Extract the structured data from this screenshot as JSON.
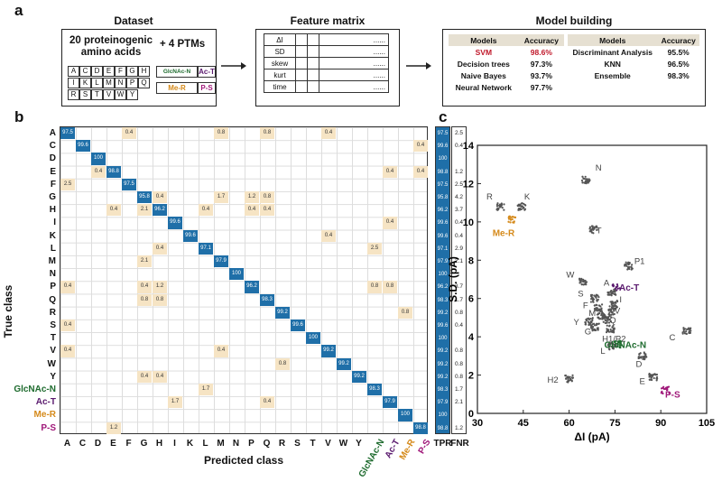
{
  "panel_a": {
    "label": "a",
    "dataset": {
      "title": "Dataset",
      "text_line1": "20 proteinogenic",
      "text_line2": "amino acids",
      "plus": "+ 4 PTMs",
      "amino_acids": [
        "A",
        "C",
        "D",
        "E",
        "F",
        "G",
        "H",
        "I",
        "K",
        "L",
        "M",
        "N",
        "P",
        "Q",
        "R",
        "S",
        "T",
        "V",
        "W",
        "Y"
      ],
      "ptms": [
        {
          "label": "GlcNAc-N",
          "color": "#1e6b2e"
        },
        {
          "label": "Ac-T",
          "color": "#5a1a6e"
        },
        {
          "label": "Me-R",
          "color": "#d58a1b"
        },
        {
          "label": "P-S",
          "color": "#a0197a"
        }
      ]
    },
    "feature_matrix": {
      "title": "Feature matrix",
      "rows": [
        "ΔI",
        "SD",
        "skew",
        "kurt",
        "time"
      ],
      "dots": "......"
    },
    "model_building": {
      "title": "Model building",
      "header": {
        "models": "Models",
        "accuracy": "Accuracy"
      },
      "left": [
        {
          "model": "SVM",
          "acc": "98.6%",
          "highlight": true
        },
        {
          "model": "Decision trees",
          "acc": "97.3%"
        },
        {
          "model": "Naive Bayes",
          "acc": "93.7%"
        },
        {
          "model": "Neural Network",
          "acc": "97.7%"
        }
      ],
      "right": [
        {
          "model": "Discriminant Analysis",
          "acc": "95.5%"
        },
        {
          "model": "KNN",
          "acc": "96.5%"
        },
        {
          "model": "Ensemble",
          "acc": "98.3%"
        }
      ]
    }
  },
  "panel_b": {
    "label": "b",
    "chart_data": {
      "type": "heatmap",
      "title": "Confusion matrix",
      "ylabel": "True class",
      "xlabel": "Predicted class",
      "classes": [
        "A",
        "C",
        "D",
        "E",
        "F",
        "G",
        "H",
        "I",
        "K",
        "L",
        "M",
        "N",
        "P",
        "Q",
        "R",
        "S",
        "T",
        "V",
        "W",
        "Y",
        "GlcNAc-N",
        "Ac-T",
        "Me-R",
        "P-S"
      ],
      "class_colors": {
        "GlcNAc-N": "#1e6b2e",
        "Ac-T": "#5a1a6e",
        "Me-R": "#d58a1b",
        "P-S": "#a0197a"
      },
      "diagonal": [
        97.5,
        99.6,
        100,
        98.8,
        97.5,
        95.8,
        96.2,
        99.6,
        99.6,
        97.1,
        97.9,
        100,
        96.2,
        98.3,
        99.2,
        99.6,
        100,
        99.2,
        99.2,
        99.2,
        98.3,
        97.9,
        100,
        98.8
      ],
      "off_diagonal": [
        {
          "r": "A",
          "c": "F",
          "v": 0.4
        },
        {
          "r": "A",
          "c": "M",
          "v": 0.8
        },
        {
          "r": "A",
          "c": "Q",
          "v": 0.8
        },
        {
          "r": "A",
          "c": "V",
          "v": 0.4
        },
        {
          "r": "C",
          "c": "P-S",
          "v": 0.4
        },
        {
          "r": "E",
          "c": "D",
          "v": 0.4
        },
        {
          "r": "E",
          "c": "Ac-T",
          "v": 0.4
        },
        {
          "r": "E",
          "c": "P-S",
          "v": 0.4
        },
        {
          "r": "F",
          "c": "A",
          "v": 2.5
        },
        {
          "r": "G",
          "c": "H",
          "v": 0.4
        },
        {
          "r": "G",
          "c": "M",
          "v": 1.7
        },
        {
          "r": "G",
          "c": "P",
          "v": 1.2
        },
        {
          "r": "G",
          "c": "Q",
          "v": 0.8
        },
        {
          "r": "H",
          "c": "E",
          "v": 0.4
        },
        {
          "r": "H",
          "c": "G",
          "v": 2.1
        },
        {
          "r": "H",
          "c": "L",
          "v": 0.4
        },
        {
          "r": "H",
          "c": "P",
          "v": 0.4
        },
        {
          "r": "H",
          "c": "Q",
          "v": 0.4
        },
        {
          "r": "I",
          "c": "Ac-T",
          "v": 0.4
        },
        {
          "r": "K",
          "c": "V",
          "v": 0.4
        },
        {
          "r": "L",
          "c": "H",
          "v": 0.4
        },
        {
          "r": "L",
          "c": "GlcNAc-N",
          "v": 2.5
        },
        {
          "r": "M",
          "c": "G",
          "v": 2.1
        },
        {
          "r": "P",
          "c": "A",
          "v": 0.4
        },
        {
          "r": "P",
          "c": "G",
          "v": 0.4
        },
        {
          "r": "P",
          "c": "H",
          "v": 1.2
        },
        {
          "r": "P",
          "c": "GlcNAc-N",
          "v": 0.8
        },
        {
          "r": "P",
          "c": "Ac-T",
          "v": 0.8
        },
        {
          "r": "Q",
          "c": "G",
          "v": 0.8
        },
        {
          "r": "Q",
          "c": "H",
          "v": 0.8
        },
        {
          "r": "R",
          "c": "Me-R",
          "v": 0.8
        },
        {
          "r": "S",
          "c": "A",
          "v": 0.4
        },
        {
          "r": "V",
          "c": "A",
          "v": 0.4
        },
        {
          "r": "V",
          "c": "M",
          "v": 0.4
        },
        {
          "r": "W",
          "c": "R",
          "v": 0.8
        },
        {
          "r": "Y",
          "c": "G",
          "v": 0.4
        },
        {
          "r": "Y",
          "c": "H",
          "v": 0.4
        },
        {
          "r": "GlcNAc-N",
          "c": "L",
          "v": 1.7
        },
        {
          "r": "Ac-T",
          "c": "I",
          "v": 1.7
        },
        {
          "r": "Ac-T",
          "c": "Q",
          "v": 0.4
        },
        {
          "r": "P-S",
          "c": "E",
          "v": 1.2
        }
      ],
      "tpr": [
        97.5,
        99.6,
        100,
        98.8,
        97.5,
        95.8,
        96.2,
        99.6,
        99.6,
        97.1,
        97.9,
        100,
        96.2,
        98.3,
        99.2,
        99.6,
        100,
        99.2,
        99.2,
        99.2,
        98.3,
        97.9,
        100,
        98.8
      ],
      "fnr": [
        2.5,
        0.4,
        "",
        1.2,
        2.5,
        4.2,
        3.7,
        0.4,
        0.4,
        2.9,
        2.1,
        "",
        3.7,
        1.7,
        0.8,
        0.4,
        "",
        0.8,
        0.8,
        0.8,
        1.7,
        2.1,
        "",
        1.2
      ],
      "tpr_label": "TPR",
      "fnr_label": "FNR"
    }
  },
  "panel_c": {
    "label": "c",
    "chart_data": {
      "type": "scatter",
      "xlabel": "ΔI (pA)",
      "ylabel": "S.D. (pA)",
      "xlim": [
        30,
        105
      ],
      "ylim": [
        0,
        14
      ],
      "xticks": [
        30,
        45,
        60,
        75,
        90,
        105
      ],
      "yticks": [
        0,
        2,
        4,
        6,
        8,
        10,
        12,
        14
      ],
      "clusters": [
        {
          "label": "R",
          "x": 37.5,
          "y": 10.8,
          "color": "#555555"
        },
        {
          "label": "K",
          "x": 44.5,
          "y": 10.8,
          "color": "#555555"
        },
        {
          "label": "Me-R",
          "x": 41.5,
          "y": 10.1,
          "color": "#d58a1b"
        },
        {
          "label": "N",
          "x": 65.5,
          "y": 12.2,
          "color": "#555555"
        },
        {
          "label": "T",
          "x": 68.0,
          "y": 9.6,
          "color": "#555555"
        },
        {
          "label": "W",
          "x": 64.5,
          "y": 6.9,
          "color": "#555555"
        },
        {
          "label": "P1",
          "x": 79.5,
          "y": 7.7,
          "color": "#555555"
        },
        {
          "label": "Ac-T",
          "x": 75.5,
          "y": 6.6,
          "color": "#5a1a6e"
        },
        {
          "label": "A",
          "x": 74.0,
          "y": 6.3,
          "color": "#555555"
        },
        {
          "label": "S",
          "x": 68.5,
          "y": 6.0,
          "color": "#555555"
        },
        {
          "label": "I",
          "x": 74.5,
          "y": 5.7,
          "color": "#555555"
        },
        {
          "label": "F",
          "x": 69.5,
          "y": 5.5,
          "color": "#555555"
        },
        {
          "label": "V",
          "x": 74.0,
          "y": 5.3,
          "color": "#555555"
        },
        {
          "label": "M",
          "x": 70.5,
          "y": 5.1,
          "color": "#555555"
        },
        {
          "label": "Q",
          "x": 72.5,
          "y": 4.9,
          "color": "#555555"
        },
        {
          "label": "Y",
          "x": 66.5,
          "y": 4.8,
          "color": "#555555"
        },
        {
          "label": "G",
          "x": 68.5,
          "y": 4.5,
          "color": "#555555"
        },
        {
          "label": "H1/P2",
          "x": 73.5,
          "y": 4.4,
          "color": "#555555"
        },
        {
          "label": "C",
          "x": 98.5,
          "y": 4.3,
          "color": "#555555"
        },
        {
          "label": "L",
          "x": 74.0,
          "y": 3.5,
          "color": "#555555"
        },
        {
          "label": "GlcNAc-N",
          "x": 76.0,
          "y": 3.6,
          "color": "#1e6b2e"
        },
        {
          "label": "D",
          "x": 84.0,
          "y": 3.0,
          "color": "#555555"
        },
        {
          "label": "E",
          "x": 87.5,
          "y": 1.9,
          "color": "#555555"
        },
        {
          "label": "P-S",
          "x": 91.5,
          "y": 1.2,
          "color": "#a0197a"
        },
        {
          "label": "H2",
          "x": 60.0,
          "y": 1.8,
          "color": "#555555"
        }
      ]
    }
  }
}
